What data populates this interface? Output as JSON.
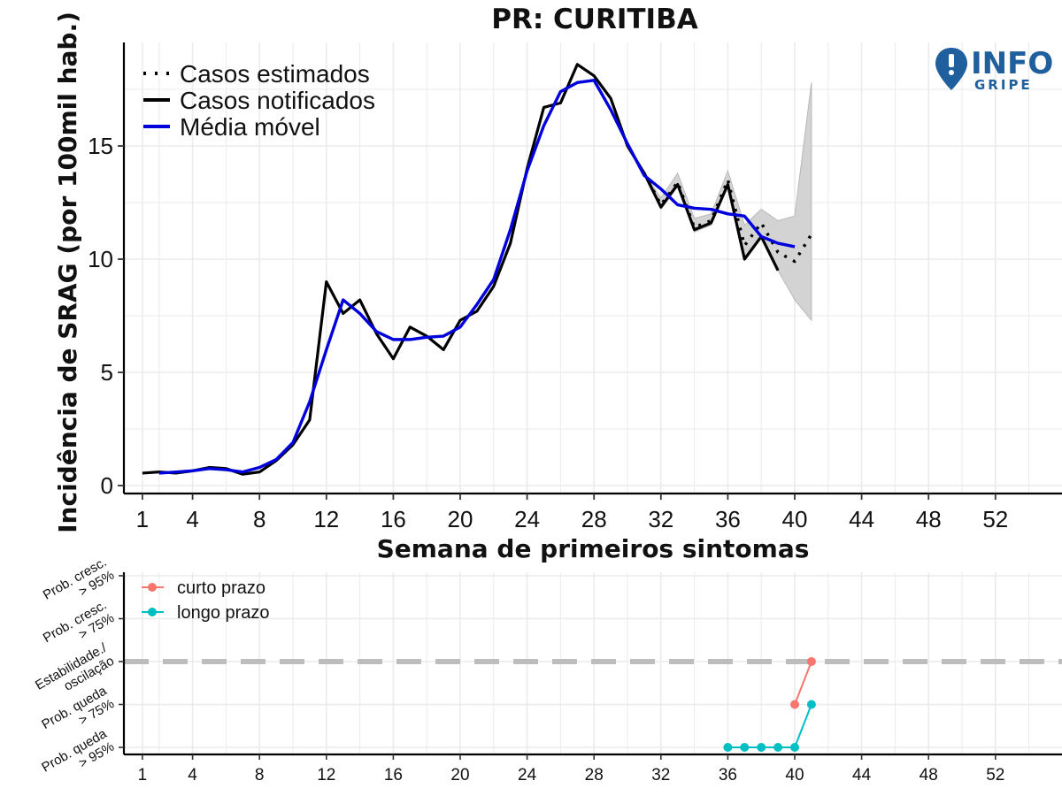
{
  "chart_data": [
    {
      "type": "line",
      "title": "PR: CURITIBA",
      "xlabel": "Semana de primeiros sintomas",
      "ylabel": "Incidência de SRAG (por 100mil hab.)",
      "xlim": [
        0,
        54
      ],
      "ylim": [
        0,
        19.5
      ],
      "x_ticks": [
        1,
        4,
        8,
        12,
        16,
        20,
        24,
        28,
        32,
        36,
        40,
        44,
        48,
        52
      ],
      "y_ticks": [
        0,
        5,
        10,
        15
      ],
      "grid": true,
      "legend_position": "top-left",
      "series": [
        {
          "name": "Casos notificados",
          "style": "solid",
          "color": "#000000",
          "x": [
            1,
            2,
            3,
            4,
            5,
            6,
            7,
            8,
            9,
            10,
            11,
            12,
            13,
            14,
            15,
            16,
            17,
            18,
            19,
            20,
            21,
            22,
            23,
            24,
            25,
            26,
            27,
            28,
            29,
            30,
            31,
            32,
            33,
            34,
            35,
            36,
            37,
            38,
            39
          ],
          "y": [
            0.55,
            0.6,
            0.55,
            0.65,
            0.8,
            0.75,
            0.5,
            0.6,
            1.1,
            1.8,
            2.9,
            9.0,
            7.6,
            8.2,
            6.7,
            5.6,
            7.0,
            6.6,
            6.0,
            7.3,
            7.7,
            8.8,
            10.7,
            14.0,
            16.7,
            16.9,
            18.6,
            18.1,
            17.1,
            15.0,
            13.8,
            12.3,
            13.3,
            11.3,
            11.6,
            13.3,
            10.0,
            11.0,
            9.5
          ]
        },
        {
          "name": "Casos estimados",
          "style": "dotted",
          "color": "#000000",
          "x": [
            31,
            32,
            33,
            34,
            35,
            36,
            37,
            38,
            39,
            40,
            41
          ],
          "y": [
            13.8,
            12.4,
            13.4,
            11.4,
            11.7,
            13.5,
            10.6,
            11.6,
            10.3,
            9.9,
            11.1
          ]
        },
        {
          "name": "Média móvel",
          "style": "solid",
          "color": "#0000dd",
          "x": [
            2,
            3,
            4,
            5,
            6,
            7,
            8,
            9,
            10,
            11,
            12,
            13,
            14,
            15,
            16,
            17,
            18,
            19,
            20,
            21,
            22,
            23,
            24,
            25,
            26,
            27,
            28,
            29,
            30,
            31,
            32,
            33,
            34,
            35,
            36,
            37,
            38,
            39,
            40
          ],
          "y": [
            0.55,
            0.6,
            0.65,
            0.75,
            0.7,
            0.6,
            0.8,
            1.15,
            1.9,
            3.7,
            6.0,
            8.2,
            7.6,
            6.8,
            6.45,
            6.45,
            6.55,
            6.6,
            7.0,
            8.0,
            9.1,
            11.3,
            13.9,
            15.9,
            17.4,
            17.8,
            17.9,
            16.6,
            15.1,
            13.7,
            13.1,
            12.4,
            12.25,
            12.2,
            12.0,
            11.9,
            11.0,
            10.7,
            10.55
          ]
        }
      ],
      "confidence_band": {
        "x": [
          31,
          32,
          33,
          34,
          35,
          36,
          37,
          38,
          39,
          40,
          41
        ],
        "lower": [
          13.8,
          12.2,
          13.2,
          11.2,
          11.5,
          13.2,
          10.0,
          11.0,
          9.5,
          8.2,
          7.3
        ],
        "upper": [
          13.8,
          12.7,
          13.8,
          11.8,
          12.0,
          13.9,
          11.5,
          12.2,
          11.7,
          11.9,
          17.8
        ],
        "color": "#d3d3d3"
      }
    },
    {
      "type": "line",
      "xlabel": "",
      "xlim": [
        0,
        54
      ],
      "x_ticks": [
        1,
        4,
        8,
        12,
        16,
        20,
        24,
        28,
        32,
        36,
        40,
        44,
        48,
        52
      ],
      "y_levels": [
        -2,
        -1,
        0,
        1,
        2
      ],
      "y_tick_labels": [
        [
          "Prob. queda",
          "> 95%"
        ],
        [
          "Prob. queda",
          "> 75%"
        ],
        [
          "Estabilidade./",
          "oscilação"
        ],
        [
          "Prob. cresc.",
          "> 75%"
        ],
        [
          "Prob. cresc.",
          "> 95%"
        ]
      ],
      "reference_line": 0,
      "legend_position": "top-left",
      "series": [
        {
          "name": "curto prazo",
          "color": "#f8766d",
          "x": [
            40,
            41
          ],
          "y": [
            -1,
            0
          ]
        },
        {
          "name": "longo prazo",
          "color": "#00bfc4",
          "x": [
            36,
            37,
            38,
            39,
            40,
            41
          ],
          "y": [
            -2,
            -2,
            -2,
            -2,
            -2,
            -1
          ]
        }
      ]
    }
  ],
  "logo": {
    "text_main": "INFO",
    "text_sub": "GRIPE",
    "color": "#1f5f9e"
  }
}
